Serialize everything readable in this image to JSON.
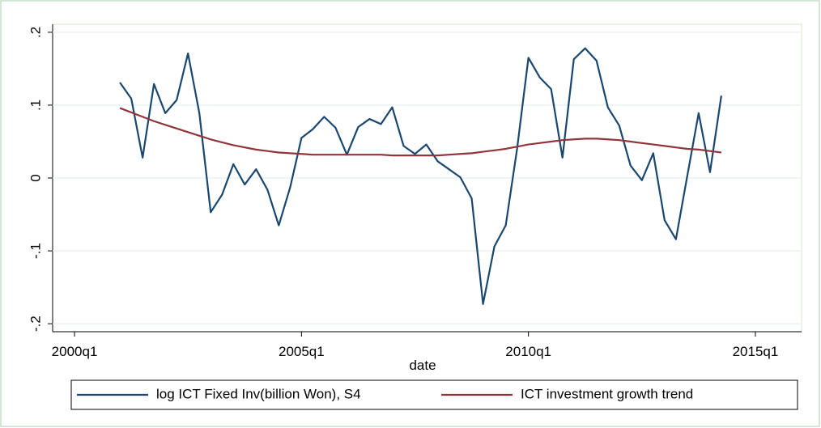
{
  "chart_data": {
    "type": "line",
    "x_label": "date",
    "x": [
      164,
      165,
      166,
      167,
      168,
      169,
      170,
      171,
      172,
      173,
      174,
      175,
      176,
      177,
      178,
      179,
      180,
      181,
      182,
      183,
      184,
      185,
      186,
      187,
      188,
      189,
      190,
      191,
      192,
      193,
      194,
      195,
      196,
      197,
      198,
      199,
      200,
      201,
      202,
      203,
      204,
      205,
      206,
      207,
      208,
      209,
      210,
      211,
      212,
      213,
      214,
      215,
      216,
      217
    ],
    "series": [
      {
        "name": "log ICT Fixed Inv(billion Won), S4",
        "color": "#1a476f",
        "values": [
          0.131,
          0.109,
          0.028,
          0.129,
          0.089,
          0.107,
          0.171,
          0.089,
          -0.047,
          -0.023,
          0.019,
          -0.009,
          0.012,
          -0.016,
          -0.065,
          -0.013,
          0.055,
          0.067,
          0.084,
          0.069,
          0.032,
          0.07,
          0.081,
          0.074,
          0.097,
          0.044,
          0.033,
          0.046,
          0.023,
          0.012,
          0.001,
          -0.028,
          -0.173,
          -0.094,
          -0.065,
          0.04,
          0.165,
          0.138,
          0.122,
          0.028,
          0.163,
          0.178,
          0.161,
          0.097,
          0.072,
          0.017,
          -0.003,
          0.034,
          -0.058,
          -0.084,
          0.003,
          0.089,
          0.008,
          0.113
        ]
      },
      {
        "name": "ICT investment growth trend",
        "color": "#90353b",
        "values": [
          0.096,
          0.09,
          0.084,
          0.078,
          0.073,
          0.068,
          0.063,
          0.058,
          0.053,
          0.049,
          0.045,
          0.042,
          0.039,
          0.037,
          0.035,
          0.034,
          0.033,
          0.032,
          0.032,
          0.032,
          0.032,
          0.032,
          0.032,
          0.032,
          0.031,
          0.031,
          0.031,
          0.031,
          0.031,
          0.032,
          0.033,
          0.034,
          0.036,
          0.038,
          0.04,
          0.043,
          0.046,
          0.048,
          0.05,
          0.052,
          0.053,
          0.054,
          0.054,
          0.053,
          0.052,
          0.05,
          0.048,
          0.046,
          0.044,
          0.042,
          0.04,
          0.039,
          0.037,
          0.035
        ]
      }
    ],
    "xlim": [
      158.07,
      224.07
    ],
    "xticks": [
      {
        "value": 160,
        "label": "2000q1"
      },
      {
        "value": 180,
        "label": "2005q1"
      },
      {
        "value": 200,
        "label": "2010q1"
      },
      {
        "value": 220,
        "label": "2015q1"
      }
    ],
    "ylim": [
      -0.211,
      0.211
    ],
    "yticks": [
      {
        "value": -0.2,
        "label": "-.2"
      },
      {
        "value": -0.1,
        "label": "-.1"
      },
      0,
      {
        "value": 0.1,
        "label": ".1"
      },
      {
        "value": 0.2,
        "label": ".2"
      }
    ],
    "grid": true
  }
}
